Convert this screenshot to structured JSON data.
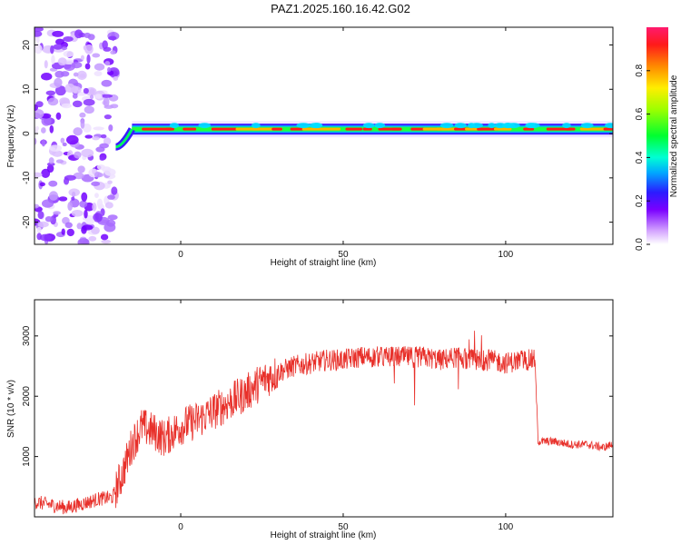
{
  "title": "PAZ1.2025.160.16.42.G02",
  "chart_data": [
    {
      "type": "heatmap",
      "xlabel": "Height of straight line (km)",
      "ylabel": "Frequency (Hz)",
      "xlim": [
        -45,
        133
      ],
      "ylim": [
        -25,
        24
      ],
      "x_ticks": [
        0,
        50,
        100
      ],
      "y_ticks": [
        -20,
        -10,
        0,
        10,
        20
      ],
      "colorbar": {
        "label": "Normalized spectral amplitude",
        "range": [
          0.0,
          1.0
        ],
        "ticks": [
          "0.0",
          "0.2",
          "0.4",
          "0.6",
          "0.8"
        ]
      },
      "description_regions": {
        "noise_region_x": [
          -45,
          -20
        ],
        "signal_line_freq_hz": 1,
        "signal_start_x": -20
      }
    },
    {
      "type": "line",
      "xlabel": "Height of straight line (km)",
      "ylabel": "SNR (10 * v/v)",
      "xlim": [
        -45,
        133
      ],
      "ylim": [
        0,
        3600
      ],
      "x_ticks": [
        0,
        50,
        100
      ],
      "y_ticks": [
        1000,
        2000,
        3000
      ],
      "color": "#e8302a",
      "series": [
        {
          "x": [
            -45,
            -40,
            -35,
            -30,
            -25,
            -21,
            -18,
            -15,
            -12,
            -8,
            -5,
            0,
            5,
            10,
            15,
            20,
            25,
            30,
            35,
            40,
            45,
            50,
            55,
            60,
            65,
            70,
            75,
            80,
            85,
            90,
            95,
            100,
            105,
            109,
            110,
            115,
            120,
            125,
            130,
            133
          ],
          "y": [
            250,
            200,
            150,
            220,
            300,
            320,
            700,
            1200,
            1500,
            1400,
            1300,
            1500,
            1600,
            1750,
            1900,
            2050,
            2250,
            2400,
            2500,
            2550,
            2600,
            2600,
            2650,
            2650,
            2650,
            2650,
            2650,
            2600,
            2650,
            2600,
            2600,
            2550,
            2600,
            2600,
            1250,
            1250,
            1200,
            1200,
            1150,
            1200
          ]
        }
      ]
    }
  ]
}
